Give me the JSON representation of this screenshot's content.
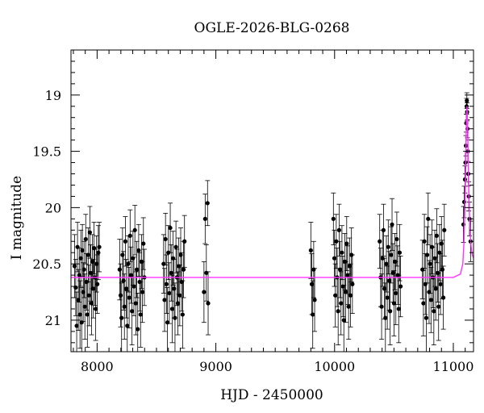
{
  "chart_data": {
    "type": "scatter",
    "title": "OGLE-2026-BLG-0268",
    "xlabel": "HJD - 2450000",
    "ylabel": "I magnitude",
    "xlim": [
      7780,
      11170
    ],
    "ylim": [
      21.28,
      18.6
    ],
    "y_inverted": true,
    "xticks": [
      8000,
      9000,
      10000,
      11000
    ],
    "yticks": [
      19,
      19.5,
      20,
      20.5,
      21
    ],
    "grid": false,
    "error_bars": true,
    "colors": {
      "points": "#000000",
      "model": "#ff33ff",
      "axes": "#000000"
    },
    "baseline_mag": 20.62,
    "model_curve": {
      "x": [
        7780,
        9000,
        10000,
        10800,
        11000,
        11060,
        11080,
        11090,
        11100,
        11105,
        11110,
        11115,
        11120,
        11125,
        11130,
        11140,
        11150,
        11160,
        11170
      ],
      "y": [
        20.62,
        20.62,
        20.62,
        20.62,
        20.62,
        20.59,
        20.5,
        20.3,
        19.9,
        19.6,
        19.25,
        19.1,
        19.25,
        19.55,
        19.85,
        20.2,
        20.35,
        20.42,
        20.45
      ]
    },
    "series": [
      {
        "x": 7810,
        "y": 20.52,
        "err": 0.28
      },
      {
        "x": 7820,
        "y": 20.71,
        "err": 0.25
      },
      {
        "x": 7828,
        "y": 21.05,
        "err": 0.3
      },
      {
        "x": 7835,
        "y": 20.35,
        "err": 0.22
      },
      {
        "x": 7842,
        "y": 20.82,
        "err": 0.27
      },
      {
        "x": 7850,
        "y": 20.6,
        "err": 0.24
      },
      {
        "x": 7856,
        "y": 20.95,
        "err": 0.3
      },
      {
        "x": 7863,
        "y": 20.45,
        "err": 0.25
      },
      {
        "x": 7870,
        "y": 21.02,
        "err": 0.31
      },
      {
        "x": 7876,
        "y": 20.38,
        "err": 0.23
      },
      {
        "x": 7883,
        "y": 20.75,
        "err": 0.26
      },
      {
        "x": 7890,
        "y": 20.55,
        "err": 0.25
      },
      {
        "x": 7897,
        "y": 20.88,
        "err": 0.29
      },
      {
        "x": 7904,
        "y": 20.28,
        "err": 0.22
      },
      {
        "x": 7911,
        "y": 20.66,
        "err": 0.25
      },
      {
        "x": 7918,
        "y": 20.95,
        "err": 0.29
      },
      {
        "x": 7925,
        "y": 20.42,
        "err": 0.24
      },
      {
        "x": 7932,
        "y": 20.78,
        "err": 0.27
      },
      {
        "x": 7939,
        "y": 20.22,
        "err": 0.23
      },
      {
        "x": 7946,
        "y": 20.58,
        "err": 0.25
      },
      {
        "x": 7953,
        "y": 20.85,
        "err": 0.28
      },
      {
        "x": 7960,
        "y": 20.48,
        "err": 0.24
      },
      {
        "x": 7967,
        "y": 20.72,
        "err": 0.26
      },
      {
        "x": 7974,
        "y": 20.36,
        "err": 0.23
      },
      {
        "x": 7981,
        "y": 20.62,
        "err": 0.25
      },
      {
        "x": 7988,
        "y": 20.9,
        "err": 0.28
      },
      {
        "x": 7995,
        "y": 20.5,
        "err": 0.25
      },
      {
        "x": 8002,
        "y": 20.68,
        "err": 0.26
      },
      {
        "x": 8010,
        "y": 20.4,
        "err": 0.24
      },
      {
        "x": 8018,
        "y": 20.35,
        "err": 0.22
      },
      {
        "x": 8190,
        "y": 20.55,
        "err": 0.27
      },
      {
        "x": 8198,
        "y": 20.78,
        "err": 0.28
      },
      {
        "x": 8206,
        "y": 20.98,
        "err": 0.31
      },
      {
        "x": 8214,
        "y": 20.42,
        "err": 0.24
      },
      {
        "x": 8222,
        "y": 20.65,
        "err": 0.26
      },
      {
        "x": 8230,
        "y": 20.88,
        "err": 0.29
      },
      {
        "x": 8238,
        "y": 20.3,
        "err": 0.22
      },
      {
        "x": 8246,
        "y": 20.72,
        "err": 0.26
      },
      {
        "x": 8254,
        "y": 21.05,
        "err": 0.31
      },
      {
        "x": 8262,
        "y": 20.5,
        "err": 0.25
      },
      {
        "x": 8270,
        "y": 20.8,
        "err": 0.27
      },
      {
        "x": 8278,
        "y": 20.25,
        "err": 0.23
      },
      {
        "x": 8286,
        "y": 20.6,
        "err": 0.25
      },
      {
        "x": 8294,
        "y": 20.92,
        "err": 0.3
      },
      {
        "x": 8302,
        "y": 20.45,
        "err": 0.24
      },
      {
        "x": 8310,
        "y": 20.7,
        "err": 0.26
      },
      {
        "x": 8318,
        "y": 20.2,
        "err": 0.22
      },
      {
        "x": 8326,
        "y": 20.85,
        "err": 0.28
      },
      {
        "x": 8334,
        "y": 20.55,
        "err": 0.25
      },
      {
        "x": 8342,
        "y": 21.08,
        "err": 0.32
      },
      {
        "x": 8350,
        "y": 20.38,
        "err": 0.23
      },
      {
        "x": 8358,
        "y": 20.66,
        "err": 0.26
      },
      {
        "x": 8366,
        "y": 20.95,
        "err": 0.29
      },
      {
        "x": 8374,
        "y": 20.48,
        "err": 0.24
      },
      {
        "x": 8382,
        "y": 20.75,
        "err": 0.27
      },
      {
        "x": 8390,
        "y": 20.32,
        "err": 0.23
      },
      {
        "x": 8398,
        "y": 20.62,
        "err": 0.25
      },
      {
        "x": 8560,
        "y": 20.5,
        "err": 0.26
      },
      {
        "x": 8568,
        "y": 20.82,
        "err": 0.28
      },
      {
        "x": 8576,
        "y": 20.28,
        "err": 0.23
      },
      {
        "x": 8584,
        "y": 20.68,
        "err": 0.26
      },
      {
        "x": 8592,
        "y": 21.02,
        "err": 0.31
      },
      {
        "x": 8600,
        "y": 20.4,
        "err": 0.24
      },
      {
        "x": 8608,
        "y": 20.76,
        "err": 0.27
      },
      {
        "x": 8616,
        "y": 20.18,
        "err": 0.22
      },
      {
        "x": 8624,
        "y": 20.58,
        "err": 0.25
      },
      {
        "x": 8632,
        "y": 20.9,
        "err": 0.3
      },
      {
        "x": 8640,
        "y": 20.45,
        "err": 0.24
      },
      {
        "x": 8648,
        "y": 20.72,
        "err": 0.26
      },
      {
        "x": 8656,
        "y": 20.98,
        "err": 0.31
      },
      {
        "x": 8664,
        "y": 20.35,
        "err": 0.23
      },
      {
        "x": 8672,
        "y": 20.62,
        "err": 0.25
      },
      {
        "x": 8680,
        "y": 20.85,
        "err": 0.28
      },
      {
        "x": 8688,
        "y": 20.52,
        "err": 0.25
      },
      {
        "x": 8696,
        "y": 20.78,
        "err": 0.27
      },
      {
        "x": 8704,
        "y": 20.42,
        "err": 0.24
      },
      {
        "x": 8712,
        "y": 20.66,
        "err": 0.26
      },
      {
        "x": 8720,
        "y": 20.95,
        "err": 0.3
      },
      {
        "x": 8728,
        "y": 20.55,
        "err": 0.25
      },
      {
        "x": 8736,
        "y": 20.3,
        "err": 0.23
      },
      {
        "x": 8900,
        "y": 20.75,
        "err": 0.27
      },
      {
        "x": 8910,
        "y": 20.1,
        "err": 0.22
      },
      {
        "x": 8920,
        "y": 20.58,
        "err": 0.25
      },
      {
        "x": 8930,
        "y": 19.96,
        "err": 0.2
      },
      {
        "x": 8935,
        "y": 20.85,
        "err": 0.28
      },
      {
        "x": 9800,
        "y": 20.38,
        "err": 0.25
      },
      {
        "x": 9808,
        "y": 20.68,
        "err": 0.27
      },
      {
        "x": 9816,
        "y": 20.95,
        "err": 0.3
      },
      {
        "x": 9824,
        "y": 20.55,
        "err": 0.25
      },
      {
        "x": 9832,
        "y": 20.82,
        "err": 0.28
      },
      {
        "x": 9990,
        "y": 20.1,
        "err": 0.23
      },
      {
        "x": 9998,
        "y": 20.45,
        "err": 0.25
      },
      {
        "x": 10006,
        "y": 20.78,
        "err": 0.28
      },
      {
        "x": 10014,
        "y": 20.3,
        "err": 0.24
      },
      {
        "x": 10022,
        "y": 20.62,
        "err": 0.26
      },
      {
        "x": 10030,
        "y": 20.92,
        "err": 0.3
      },
      {
        "x": 10038,
        "y": 20.2,
        "err": 0.23
      },
      {
        "x": 10046,
        "y": 20.55,
        "err": 0.25
      },
      {
        "x": 10054,
        "y": 20.85,
        "err": 0.28
      },
      {
        "x": 10062,
        "y": 20.4,
        "err": 0.24
      },
      {
        "x": 10070,
        "y": 20.7,
        "err": 0.27
      },
      {
        "x": 10078,
        "y": 21.0,
        "err": 0.31
      },
      {
        "x": 10086,
        "y": 20.48,
        "err": 0.25
      },
      {
        "x": 10094,
        "y": 20.75,
        "err": 0.27
      },
      {
        "x": 10102,
        "y": 20.32,
        "err": 0.24
      },
      {
        "x": 10110,
        "y": 20.6,
        "err": 0.26
      },
      {
        "x": 10118,
        "y": 20.88,
        "err": 0.29
      },
      {
        "x": 10126,
        "y": 20.52,
        "err": 0.25
      },
      {
        "x": 10134,
        "y": 20.78,
        "err": 0.28
      },
      {
        "x": 10142,
        "y": 20.42,
        "err": 0.24
      },
      {
        "x": 10150,
        "y": 20.68,
        "err": 0.26
      },
      {
        "x": 10380,
        "y": 20.3,
        "err": 0.24
      },
      {
        "x": 10388,
        "y": 20.62,
        "err": 0.26
      },
      {
        "x": 10396,
        "y": 20.88,
        "err": 0.29
      },
      {
        "x": 10404,
        "y": 20.45,
        "err": 0.25
      },
      {
        "x": 10412,
        "y": 20.2,
        "err": 0.23
      },
      {
        "x": 10420,
        "y": 20.72,
        "err": 0.27
      },
      {
        "x": 10428,
        "y": 20.98,
        "err": 0.31
      },
      {
        "x": 10436,
        "y": 20.5,
        "err": 0.25
      },
      {
        "x": 10444,
        "y": 20.8,
        "err": 0.28
      },
      {
        "x": 10452,
        "y": 20.35,
        "err": 0.24
      },
      {
        "x": 10460,
        "y": 20.65,
        "err": 0.26
      },
      {
        "x": 10468,
        "y": 20.92,
        "err": 0.3
      },
      {
        "x": 10476,
        "y": 20.42,
        "err": 0.25
      },
      {
        "x": 10484,
        "y": 20.15,
        "err": 0.23
      },
      {
        "x": 10492,
        "y": 20.58,
        "err": 0.26
      },
      {
        "x": 10500,
        "y": 20.85,
        "err": 0.29
      },
      {
        "x": 10508,
        "y": 20.48,
        "err": 0.25
      },
      {
        "x": 10516,
        "y": 20.76,
        "err": 0.28
      },
      {
        "x": 10524,
        "y": 20.28,
        "err": 0.24
      },
      {
        "x": 10532,
        "y": 20.6,
        "err": 0.26
      },
      {
        "x": 10540,
        "y": 20.9,
        "err": 0.3
      },
      {
        "x": 10548,
        "y": 20.4,
        "err": 0.25
      },
      {
        "x": 10556,
        "y": 20.7,
        "err": 0.27
      },
      {
        "x": 10740,
        "y": 20.55,
        "err": 0.26
      },
      {
        "x": 10748,
        "y": 20.85,
        "err": 0.29
      },
      {
        "x": 10756,
        "y": 20.3,
        "err": 0.24
      },
      {
        "x": 10764,
        "y": 20.68,
        "err": 0.27
      },
      {
        "x": 10772,
        "y": 20.98,
        "err": 0.31
      },
      {
        "x": 10780,
        "y": 20.42,
        "err": 0.25
      },
      {
        "x": 10788,
        "y": 20.1,
        "err": 0.23
      },
      {
        "x": 10796,
        "y": 20.75,
        "err": 0.28
      },
      {
        "x": 10804,
        "y": 20.5,
        "err": 0.26
      },
      {
        "x": 10812,
        "y": 20.82,
        "err": 0.29
      },
      {
        "x": 10820,
        "y": 20.35,
        "err": 0.24
      },
      {
        "x": 10828,
        "y": 20.62,
        "err": 0.27
      },
      {
        "x": 10836,
        "y": 20.92,
        "err": 0.3
      },
      {
        "x": 10844,
        "y": 20.45,
        "err": 0.25
      },
      {
        "x": 10852,
        "y": 20.72,
        "err": 0.28
      },
      {
        "x": 10860,
        "y": 20.25,
        "err": 0.24
      },
      {
        "x": 10868,
        "y": 20.58,
        "err": 0.26
      },
      {
        "x": 10876,
        "y": 20.88,
        "err": 0.3
      },
      {
        "x": 10884,
        "y": 20.4,
        "err": 0.25
      },
      {
        "x": 10892,
        "y": 20.68,
        "err": 0.27
      },
      {
        "x": 10900,
        "y": 20.32,
        "err": 0.24
      },
      {
        "x": 10908,
        "y": 20.55,
        "err": 0.26
      },
      {
        "x": 10916,
        "y": 20.8,
        "err": 0.28
      },
      {
        "x": 10924,
        "y": 20.2,
        "err": 0.23
      },
      {
        "x": 11085,
        "y": 20.15,
        "err": 0.16
      },
      {
        "x": 11092,
        "y": 19.95,
        "err": 0.14
      },
      {
        "x": 11098,
        "y": 19.75,
        "err": 0.12
      },
      {
        "x": 11102,
        "y": 19.6,
        "err": 0.1
      },
      {
        "x": 11106,
        "y": 19.45,
        "err": 0.09
      },
      {
        "x": 11109,
        "y": 19.25,
        "err": 0.08
      },
      {
        "x": 11112,
        "y": 19.1,
        "err": 0.07
      },
      {
        "x": 11114,
        "y": 19.05,
        "err": 0.07
      },
      {
        "x": 11116,
        "y": 19.15,
        "err": 0.08
      },
      {
        "x": 11119,
        "y": 19.3,
        "err": 0.08
      },
      {
        "x": 11122,
        "y": 19.5,
        "err": 0.1
      },
      {
        "x": 11126,
        "y": 19.7,
        "err": 0.11
      },
      {
        "x": 11130,
        "y": 19.9,
        "err": 0.13
      },
      {
        "x": 11136,
        "y": 20.1,
        "err": 0.15
      },
      {
        "x": 11145,
        "y": 20.3,
        "err": 0.18
      }
    ]
  }
}
